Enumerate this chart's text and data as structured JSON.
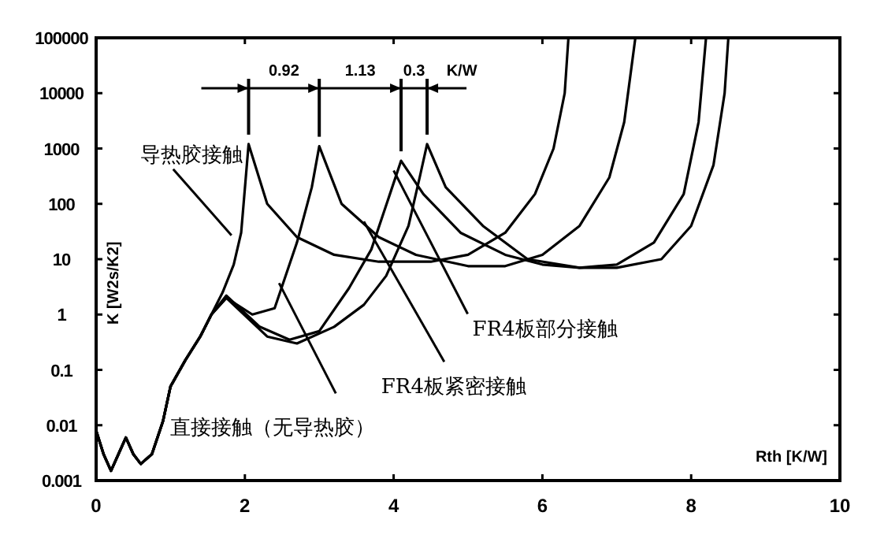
{
  "chart_data": {
    "type": "line",
    "xlabel": "Rth [K/W]",
    "ylabel": "K [W2s/K2]",
    "log": true,
    "xlim": [
      0,
      10
    ],
    "ylim": [
      0.001,
      100000
    ],
    "xticks": [
      0,
      2,
      4,
      6,
      8,
      10
    ],
    "yticks": [
      0.001,
      0.01,
      0.1,
      1,
      10,
      100,
      1000,
      10000,
      100000
    ],
    "grid": false,
    "series": [
      {
        "color": "#000000",
        "x": [
          0,
          0.1,
          0.2,
          0.3,
          0.4,
          0.5,
          0.6,
          0.75,
          0.9,
          1.0,
          1.2,
          1.4,
          1.55,
          1.7,
          1.85,
          1.95,
          2.05,
          2.3,
          2.7,
          3.2,
          3.8,
          4.5,
          5.0,
          5.5,
          5.9,
          6.15,
          6.3,
          6.35
        ],
        "values": [
          0.008,
          0.003,
          0.0015,
          0.003,
          0.006,
          0.003,
          0.002,
          0.003,
          0.012,
          0.05,
          0.15,
          0.4,
          1,
          2.5,
          8,
          30,
          1200,
          100,
          25,
          12,
          9,
          9,
          12,
          30,
          150,
          1000,
          10000,
          100000
        ]
      },
      {
        "color": "#000000",
        "x": [
          0,
          0.1,
          0.2,
          0.3,
          0.4,
          0.5,
          0.6,
          0.75,
          0.9,
          1.0,
          1.2,
          1.4,
          1.55,
          1.75,
          2.1,
          2.4,
          2.7,
          2.9,
          3.0,
          3.3,
          3.8,
          4.3,
          5.0,
          5.5,
          6.0,
          6.5,
          6.9,
          7.1,
          7.25
        ],
        "values": [
          0.008,
          0.003,
          0.0015,
          0.003,
          0.006,
          0.003,
          0.002,
          0.003,
          0.012,
          0.05,
          0.15,
          0.4,
          1,
          2,
          1,
          1.3,
          20,
          200,
          1100,
          100,
          25,
          12,
          7.5,
          7.5,
          12,
          40,
          300,
          3000,
          100000
        ]
      },
      {
        "color": "#000000",
        "x": [
          0,
          0.1,
          0.2,
          0.3,
          0.4,
          0.5,
          0.6,
          0.75,
          0.9,
          1.0,
          1.2,
          1.4,
          1.55,
          1.75,
          2.2,
          2.6,
          3.0,
          3.4,
          3.7,
          3.95,
          4.1,
          4.4,
          4.9,
          5.5,
          6.0,
          6.5,
          7.0,
          7.5,
          7.9,
          8.1,
          8.2
        ],
        "values": [
          0.008,
          0.003,
          0.0015,
          0.003,
          0.006,
          0.003,
          0.002,
          0.003,
          0.012,
          0.05,
          0.15,
          0.4,
          1,
          2.2,
          0.6,
          0.35,
          0.5,
          3,
          15,
          150,
          600,
          150,
          30,
          12,
          8,
          7,
          8,
          20,
          150,
          3000,
          100000
        ]
      },
      {
        "color": "#000000",
        "x": [
          0,
          0.1,
          0.2,
          0.3,
          0.4,
          0.5,
          0.6,
          0.75,
          0.9,
          1.0,
          1.2,
          1.4,
          1.55,
          1.75,
          2.3,
          2.7,
          3.2,
          3.6,
          3.9,
          4.2,
          4.35,
          4.45,
          4.7,
          5.2,
          5.8,
          6.5,
          7.0,
          7.6,
          8.0,
          8.3,
          8.45,
          8.5
        ],
        "values": [
          0.008,
          0.003,
          0.0015,
          0.003,
          0.006,
          0.003,
          0.002,
          0.003,
          0.012,
          0.05,
          0.15,
          0.4,
          1,
          2,
          0.4,
          0.3,
          0.6,
          1.5,
          5,
          40,
          300,
          1200,
          200,
          40,
          10,
          7,
          7,
          10,
          40,
          500,
          10000,
          100000
        ]
      }
    ],
    "annotations": [
      {
        "text": "导热胶接触",
        "x": 1.82,
        "y": 27
      },
      {
        "text": "直接接触（无导热胶）",
        "x": 2.46,
        "y": 3.7
      },
      {
        "text": "FR4板紧密接触",
        "x": 3.6,
        "y": 48
      },
      {
        "text": "FR4板部分接触",
        "x": 4.0,
        "y": 400
      },
      "0.92",
      "1.13",
      "0.3",
      "K/W"
    ]
  }
}
